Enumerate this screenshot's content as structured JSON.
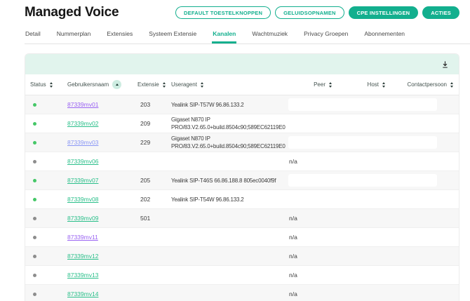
{
  "page": {
    "title": "Managed Voice"
  },
  "actions": [
    {
      "label": "DEFAULT TOESTELKNOPPEN",
      "variant": "outline"
    },
    {
      "label": "GELUIDSOPNAMEN",
      "variant": "outline"
    },
    {
      "label": "CPE INSTELLINGEN",
      "variant": "filled"
    },
    {
      "label": "ACTIES",
      "variant": "filled"
    }
  ],
  "tabs": [
    {
      "label": "Detail",
      "active": false
    },
    {
      "label": "Nummerplan",
      "active": false
    },
    {
      "label": "Extensies",
      "active": false
    },
    {
      "label": "Systeem Extensie",
      "active": false
    },
    {
      "label": "Kanalen",
      "active": true
    },
    {
      "label": "Wachtmuziek",
      "active": false
    },
    {
      "label": "Privacy Groepen",
      "active": false
    },
    {
      "label": "Abonnementen",
      "active": false
    }
  ],
  "toolbar": {
    "icon": "download-icon"
  },
  "icons": {
    "download": "download-icon",
    "sort_inactive": "sort-arrows-icon",
    "sort_active": "sort-ascending-icon"
  },
  "table": {
    "columns": [
      {
        "key": "status",
        "label": "Status",
        "sort": "none",
        "align": "left"
      },
      {
        "key": "user",
        "label": "Gebruikersnaam",
        "sort": "asc",
        "align": "left"
      },
      {
        "key": "ext",
        "label": "Extensie",
        "sort": "none",
        "align": "left"
      },
      {
        "key": "ua",
        "label": "Useragent",
        "sort": "none",
        "align": "left"
      },
      {
        "key": "peer",
        "label": "Peer",
        "sort": "none",
        "align": "right"
      },
      {
        "key": "host",
        "label": "Host",
        "sort": "none",
        "align": "right"
      },
      {
        "key": "contact",
        "label": "Contactpersoon",
        "sort": "none",
        "align": "right"
      }
    ],
    "rows": [
      {
        "status": "online",
        "gebruikersnaam": "87339mv01",
        "link": "purple",
        "extensie": "203",
        "useragent": "Yealink SIP-T57W 96.86.133.2",
        "peer": "field",
        "host": "",
        "contactpersoon": ""
      },
      {
        "status": "online",
        "gebruikersnaam": "87339mv02",
        "link": "green",
        "extensie": "209",
        "useragent": "Gigaset N870 IP PRO/83.V2.65.0+build.8504c90;589EC62119E0",
        "peer": "",
        "host": "",
        "contactpersoon": ""
      },
      {
        "status": "online",
        "gebruikersnaam": "87339mv03",
        "link": "blue",
        "extensie": "229",
        "useragent": "Gigaset N870 IP PRO/83.V2.65.0+build.8504c90;589EC62119E0",
        "peer": "field",
        "host": "",
        "contactpersoon": ""
      },
      {
        "status": "offline",
        "gebruikersnaam": "87339mv06",
        "link": "green",
        "extensie": "",
        "useragent": "",
        "peer": "n/a",
        "host": "",
        "contactpersoon": ""
      },
      {
        "status": "online",
        "gebruikersnaam": "87339mv07",
        "link": "green",
        "extensie": "205",
        "useragent": "Yealink SIP-T46S 66.86.188.8 805ec0040f9f",
        "peer": "field",
        "host": "",
        "contactpersoon": ""
      },
      {
        "status": "online",
        "gebruikersnaam": "87339mv08",
        "link": "green",
        "extensie": "202",
        "useragent": "Yealink SIP-T54W 96.86.133.2",
        "peer": "",
        "host": "",
        "contactpersoon": ""
      },
      {
        "status": "offline",
        "gebruikersnaam": "87339mv09",
        "link": "green",
        "extensie": "501",
        "useragent": "",
        "peer": "n/a",
        "host": "",
        "contactpersoon": ""
      },
      {
        "status": "offline",
        "gebruikersnaam": "87339mv11",
        "link": "purple",
        "extensie": "",
        "useragent": "",
        "peer": "n/a",
        "host": "",
        "contactpersoon": ""
      },
      {
        "status": "offline",
        "gebruikersnaam": "87339mv12",
        "link": "green",
        "extensie": "",
        "useragent": "",
        "peer": "n/a",
        "host": "",
        "contactpersoon": ""
      },
      {
        "status": "offline",
        "gebruikersnaam": "87339mv13",
        "link": "green",
        "extensie": "",
        "useragent": "",
        "peer": "n/a",
        "host": "",
        "contactpersoon": ""
      },
      {
        "status": "offline",
        "gebruikersnaam": "87339mv14",
        "link": "green",
        "extensie": "",
        "useragent": "",
        "peer": "n/a",
        "host": "",
        "contactpersoon": ""
      }
    ]
  },
  "colors": {
    "accent": "#13af8e",
    "mint": "#e1f4ed",
    "sort_badge": "#cdece1",
    "stripe": "#f7f7f7",
    "status_online": "#45c767",
    "status_offline": "#8d8d8d",
    "link": {
      "green": "#2abf8a",
      "purple": "#9a63f2",
      "blue": "#8a97f5"
    }
  }
}
